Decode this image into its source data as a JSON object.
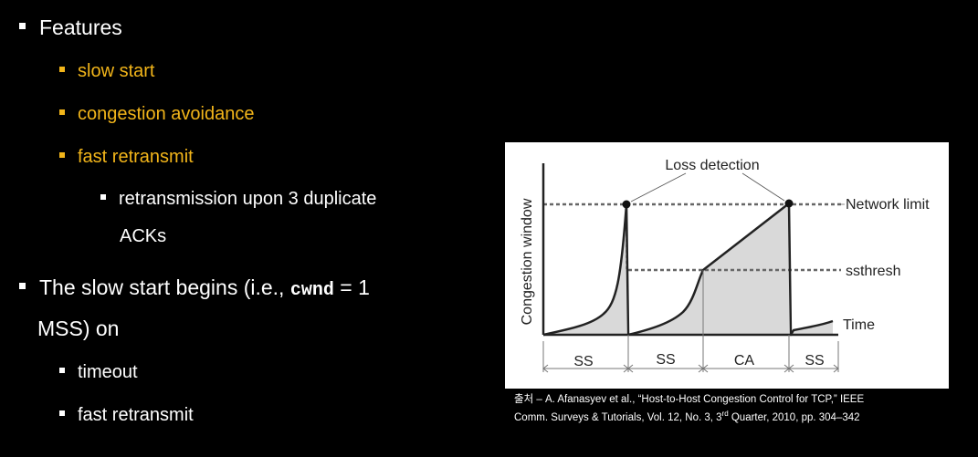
{
  "bullets": {
    "features": "Features",
    "slow_start": "slow start",
    "congestion_avoidance": "congestion avoidance",
    "fast_retransmit": "fast retransmit",
    "retransmission_line1": "retransmission upon 3 duplicate",
    "retransmission_line2": "ACKs",
    "slowstart_pre": "The slow start begins (i.e., ",
    "slowstart_code": "cwnd",
    "slowstart_post": " = 1",
    "slowstart_line2": "MSS) on",
    "timeout": "timeout",
    "fast_retransmit_2": "fast retransmit"
  },
  "diagram": {
    "loss_detection": "Loss detection",
    "network_limit": "Network limit",
    "ssthresh": "ssthresh",
    "time": "Time",
    "y_axis": "Congestion window",
    "phases": [
      "SS",
      "SS",
      "CA",
      "SS"
    ]
  },
  "caption": {
    "line1": "출처 – A. Afanasyev et al., “Host-to-Host Congestion Control for TCP,” IEEE",
    "line2_pre": "Comm. Surveys & Tutorials, Vol. 12, No. 3, 3",
    "line2_sup": "rd",
    "line2_post": " Quarter, 2010, pp. 304–342"
  },
  "colors": {
    "accent": "#f2b51a",
    "background": "#000000",
    "fill": "#d9d9d9"
  }
}
